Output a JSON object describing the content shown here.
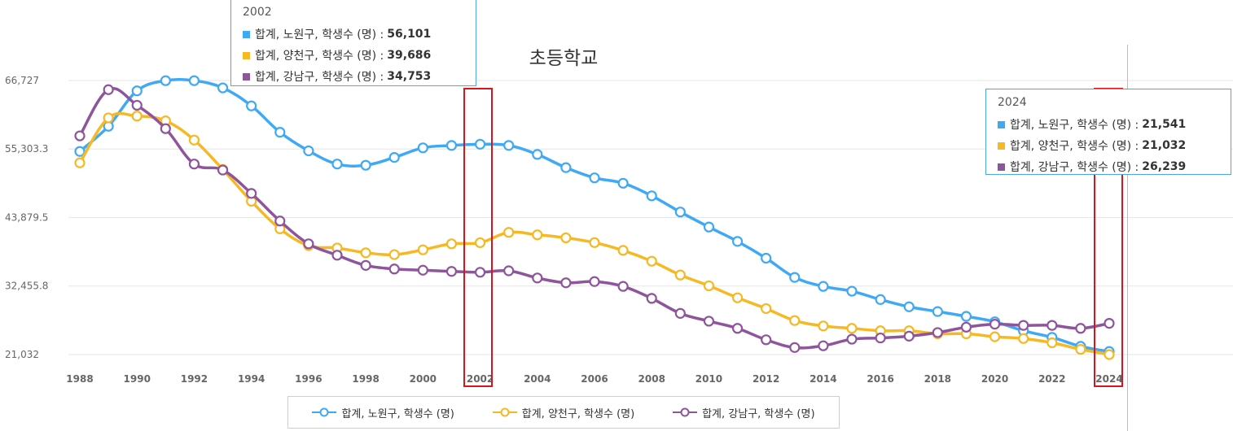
{
  "colors": {
    "nowon": "#3fa9f5",
    "yangcheon": "#f6b823",
    "gangnam": "#8e559c",
    "grid": "#e6e6e6",
    "highlight": "#d9141b",
    "tooltip_border": "#4aa8e8"
  },
  "legend": [
    {
      "label": "합계, 노원구, 학생수 (명)",
      "color": "#3fa9f5"
    },
    {
      "label": "합계, 양천구, 학생수 (명)",
      "color": "#f6b823"
    },
    {
      "label": "합계, 강남구, 학생수 (명)",
      "color": "#8e559c"
    }
  ],
  "tooltips": [
    {
      "year": "2002",
      "rows": [
        {
          "label": "합계, 노원구, 학생수 (명) :",
          "value": "56,101",
          "color": "#3fa9f5"
        },
        {
          "label": "합계, 양천구, 학생수 (명) :",
          "value": "39,686",
          "color": "#f6b823"
        },
        {
          "label": "합계, 강남구, 학생수 (명) :",
          "value": "34,753",
          "color": "#8e559c"
        }
      ]
    },
    {
      "year": "2024",
      "rows": [
        {
          "label": "합계, 노원구, 학생수 (명) :",
          "value": "21,541",
          "color": "#3fa9f5"
        },
        {
          "label": "합계, 양천구, 학생수 (명) :",
          "value": "21,032",
          "color": "#f6b823"
        },
        {
          "label": "합계, 강남구, 학생수 (명) :",
          "value": "26,239",
          "color": "#8e559c"
        }
      ]
    }
  ],
  "chart_data": {
    "type": "line",
    "title": "초등학교",
    "xlabel": "",
    "ylabel": "",
    "x": [
      1988,
      1989,
      1990,
      1991,
      1992,
      1993,
      1994,
      1995,
      1996,
      1997,
      1998,
      1999,
      2000,
      2001,
      2002,
      2003,
      2004,
      2005,
      2006,
      2007,
      2008,
      2009,
      2010,
      2011,
      2012,
      2013,
      2014,
      2015,
      2016,
      2017,
      2018,
      2019,
      2020,
      2021,
      2022,
      2023,
      2024
    ],
    "x_tick_labels": [
      "1988",
      "1990",
      "1992",
      "1994",
      "1996",
      "1998",
      "2000",
      "2002",
      "2004",
      "2006",
      "2008",
      "2010",
      "2012",
      "2014",
      "2016",
      "2018",
      "2020",
      "2022",
      "2024"
    ],
    "y_ticks": [
      21032,
      32455.8,
      43879.5,
      55303.3,
      66727
    ],
    "y_tick_labels": [
      "21,032",
      "32,455.8",
      "43,879.5",
      "55,303.3",
      "66,727"
    ],
    "ylim": [
      21032,
      66727
    ],
    "grid": true,
    "legend_position": "bottom",
    "highlighted_x": [
      2002,
      2024
    ],
    "series": [
      {
        "name": "합계, 노원구, 학생수 (명)",
        "color": "#3fa9f5",
        "values": [
          54900,
          59100,
          65000,
          66700,
          66700,
          65500,
          62500,
          58100,
          55000,
          52800,
          52600,
          53900,
          55500,
          55900,
          56101,
          55900,
          54400,
          52200,
          50500,
          49600,
          47500,
          44800,
          42300,
          39900,
          37100,
          33900,
          32400,
          31600,
          30200,
          29000,
          28200,
          27400,
          26500,
          25000,
          23900,
          22400,
          21541
        ]
      },
      {
        "name": "합계, 양천구, 학생수 (명)",
        "color": "#f6b823",
        "values": [
          53000,
          60500,
          60800,
          60000,
          56800,
          51900,
          46600,
          42000,
          39200,
          38800,
          38000,
          37700,
          38500,
          39500,
          39686,
          41400,
          41000,
          40500,
          39700,
          38400,
          36600,
          34300,
          32500,
          30500,
          28700,
          26700,
          25800,
          25400,
          25000,
          25000,
          24500,
          24500,
          24000,
          23700,
          23000,
          21900,
          21032
        ]
      },
      {
        "name": "합계, 강남구, 학생수 (명)",
        "color": "#8e559c",
        "values": [
          57500,
          65200,
          62600,
          58700,
          52800,
          51800,
          47900,
          43300,
          39500,
          37600,
          35900,
          35300,
          35100,
          34900,
          34753,
          35000,
          33800,
          33000,
          33200,
          32400,
          30400,
          27900,
          26600,
          25400,
          23500,
          22200,
          22500,
          23600,
          23800,
          24100,
          24700,
          25600,
          26100,
          25900,
          25900,
          25400,
          26239
        ]
      }
    ]
  }
}
